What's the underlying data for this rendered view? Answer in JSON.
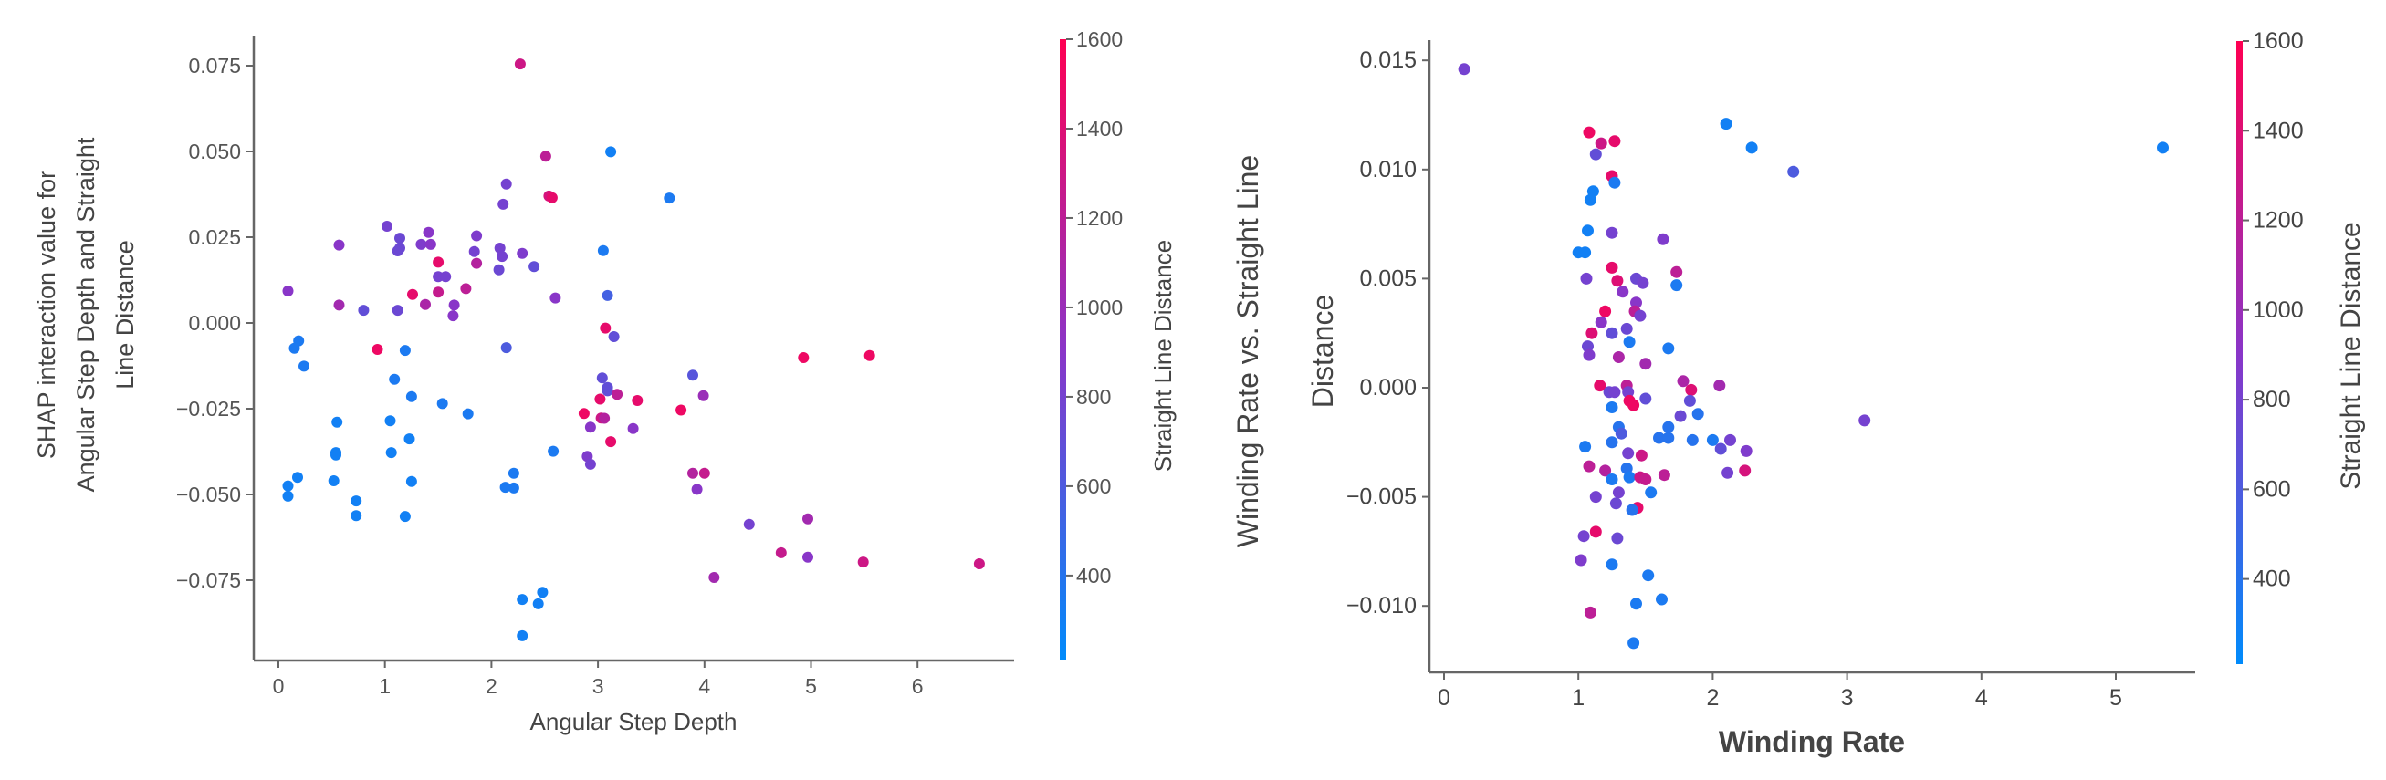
{
  "chart_data": [
    {
      "type": "scatter",
      "xlabel": "Angular Step Depth",
      "ylabel_lines": [
        "SHAP interaction value for",
        "Angular Step Depth and Straight",
        "Line Distance"
      ],
      "colorbar_label": "Straight Line Distance",
      "xlim": [
        -0.3,
        6.9
      ],
      "ylim": [
        -0.098,
        0.084
      ],
      "xticks": [
        0,
        1,
        2,
        3,
        4,
        5,
        6
      ],
      "xtick_labels": [
        "0",
        "1",
        "2",
        "3",
        "4",
        "5",
        "6"
      ],
      "yticks": [
        0.075,
        0.05,
        0.025,
        0,
        -0.025,
        -0.05,
        -0.075
      ],
      "ytick_labels": [
        "0.075",
        "0.050",
        "0.025",
        "0.000",
        "−0.025",
        "−0.050",
        "−0.075"
      ],
      "colorbar_ticks": [
        400,
        600,
        800,
        1000,
        1200,
        1400,
        1600
      ],
      "colorbar_range": [
        210,
        1600
      ],
      "points": [
        [
          2.27,
          0.0755,
          1300
        ],
        [
          3.12,
          0.0499,
          300
        ],
        [
          2.51,
          0.0486,
          1200
        ],
        [
          3.67,
          0.0364,
          350
        ],
        [
          2.54,
          0.037,
          1350
        ],
        [
          2.57,
          0.0365,
          1450
        ],
        [
          2.14,
          0.0405,
          800
        ],
        [
          2.11,
          0.0346,
          800
        ],
        [
          1.02,
          0.0282,
          800
        ],
        [
          1.14,
          0.0247,
          750
        ],
        [
          0.57,
          0.0227,
          900
        ],
        [
          1.12,
          0.021,
          750
        ],
        [
          1.14,
          0.0218,
          750
        ],
        [
          1.34,
          0.0229,
          850
        ],
        [
          1.43,
          0.0229,
          900
        ],
        [
          1.41,
          0.0264,
          900
        ],
        [
          1.86,
          0.0254,
          850
        ],
        [
          1.84,
          0.0208,
          800
        ],
        [
          2.08,
          0.0218,
          800
        ],
        [
          2.1,
          0.0194,
          800
        ],
        [
          2.29,
          0.0203,
          850
        ],
        [
          1.5,
          0.0177,
          1450
        ],
        [
          1.86,
          0.0174,
          1150
        ],
        [
          2.07,
          0.0155,
          750
        ],
        [
          2.4,
          0.0164,
          700
        ],
        [
          1.5,
          0.0135,
          800
        ],
        [
          1.57,
          0.0135,
          800
        ],
        [
          1.76,
          0.01,
          1200
        ],
        [
          1.26,
          0.0083,
          1450
        ],
        [
          1.5,
          0.009,
          1250
        ],
        [
          2.6,
          0.0073,
          900
        ],
        [
          0.09,
          0.0093,
          900
        ],
        [
          0.57,
          0.0052,
          1050
        ],
        [
          0.8,
          0.0037,
          700
        ],
        [
          1.12,
          0.0037,
          750
        ],
        [
          1.38,
          0.0054,
          1100
        ],
        [
          1.65,
          0.0052,
          900
        ],
        [
          1.64,
          0.0021,
          900
        ],
        [
          3.05,
          0.0211,
          350
        ],
        [
          3.09,
          0.008,
          550
        ],
        [
          3.07,
          -0.0015,
          1450
        ],
        [
          3.15,
          -0.004,
          700
        ],
        [
          0.19,
          -0.0052,
          350
        ],
        [
          0.15,
          -0.0074,
          350
        ],
        [
          0.24,
          -0.0126,
          350
        ],
        [
          0.93,
          -0.0077,
          1500
        ],
        [
          1.19,
          -0.008,
          350
        ],
        [
          2.14,
          -0.0072,
          600
        ],
        [
          4.93,
          -0.0101,
          1500
        ],
        [
          5.55,
          -0.0095,
          1500
        ],
        [
          1.09,
          -0.0164,
          350
        ],
        [
          1.25,
          -0.0215,
          350
        ],
        [
          1.54,
          -0.0235,
          350
        ],
        [
          1.78,
          -0.0265,
          350
        ],
        [
          3.04,
          -0.016,
          700
        ],
        [
          3.09,
          -0.0188,
          700
        ],
        [
          3.09,
          -0.0198,
          700
        ],
        [
          3.18,
          -0.0208,
          1200
        ],
        [
          3.02,
          -0.0222,
          1450
        ],
        [
          3.37,
          -0.0226,
          1450
        ],
        [
          3.89,
          -0.0152,
          650
        ],
        [
          3.99,
          -0.0212,
          1000
        ],
        [
          3.78,
          -0.0254,
          1500
        ],
        [
          2.87,
          -0.0264,
          1500
        ],
        [
          3.03,
          -0.0277,
          1300
        ],
        [
          3.06,
          -0.0278,
          1150
        ],
        [
          2.93,
          -0.0304,
          900
        ],
        [
          3.33,
          -0.0308,
          900
        ],
        [
          3.12,
          -0.0346,
          1450
        ],
        [
          2.9,
          -0.0389,
          850
        ],
        [
          2.93,
          -0.0412,
          800
        ],
        [
          0.55,
          -0.0289,
          300
        ],
        [
          1.05,
          -0.0285,
          300
        ],
        [
          0.54,
          -0.0378,
          300
        ],
        [
          0.54,
          -0.0385,
          300
        ],
        [
          1.06,
          -0.0378,
          300
        ],
        [
          1.23,
          -0.0338,
          300
        ],
        [
          2.58,
          -0.0374,
          350
        ],
        [
          0.18,
          -0.045,
          300
        ],
        [
          0.09,
          -0.0475,
          300
        ],
        [
          0.09,
          -0.0505,
          300
        ],
        [
          0.52,
          -0.046,
          300
        ],
        [
          1.25,
          -0.0462,
          300
        ],
        [
          2.21,
          -0.0438,
          350
        ],
        [
          2.13,
          -0.0479,
          350
        ],
        [
          2.21,
          -0.0481,
          350
        ],
        [
          0.73,
          -0.0519,
          300
        ],
        [
          0.73,
          -0.0562,
          300
        ],
        [
          1.19,
          -0.0564,
          300
        ],
        [
          3.89,
          -0.0438,
          1150
        ],
        [
          4.0,
          -0.0438,
          1250
        ],
        [
          3.93,
          -0.0485,
          900
        ],
        [
          4.42,
          -0.0587,
          800
        ],
        [
          4.97,
          -0.0571,
          1050
        ],
        [
          4.72,
          -0.067,
          1250
        ],
        [
          4.97,
          -0.0683,
          900
        ],
        [
          5.49,
          -0.0697,
          1300
        ],
        [
          6.58,
          -0.0702,
          1300
        ],
        [
          4.09,
          -0.0742,
          1050
        ],
        [
          2.29,
          -0.0806,
          300
        ],
        [
          2.48,
          -0.0785,
          300
        ],
        [
          2.44,
          -0.0819,
          300
        ],
        [
          2.29,
          -0.0912,
          300
        ]
      ]
    },
    {
      "type": "scatter",
      "xlabel": "Winding Rate",
      "ylabel_lines": [
        "Winding Rate vs. Straight Line",
        "Distance"
      ],
      "colorbar_label": "Straight Line Distance",
      "xlim": [
        -0.1,
        5.7
      ],
      "ylim": [
        -0.0131,
        0.0159
      ],
      "xticks": [
        0,
        1,
        2,
        3,
        4,
        5
      ],
      "xtick_labels": [
        "0",
        "1",
        "2",
        "3",
        "4",
        "5"
      ],
      "yticks": [
        0.015,
        0.01,
        0.005,
        0,
        -0.005,
        -0.01
      ],
      "ytick_labels": [
        "0.015",
        "0.010",
        "0.005",
        "0.000",
        "−0.005",
        "−0.010"
      ],
      "colorbar_ticks": [
        400,
        600,
        800,
        1000,
        1200,
        1400,
        1600
      ],
      "colorbar_range": [
        210,
        1600
      ],
      "points": [
        [
          0.15,
          0.0146,
          800
        ],
        [
          2.1,
          0.0121,
          300
        ],
        [
          2.29,
          0.011,
          300
        ],
        [
          2.6,
          0.0099,
          600
        ],
        [
          5.35,
          0.011,
          300
        ],
        [
          1.08,
          0.0117,
          1500
        ],
        [
          1.17,
          0.0112,
          1300
        ],
        [
          1.27,
          0.0113,
          1450
        ],
        [
          1.13,
          0.0107,
          700
        ],
        [
          1.25,
          0.0097,
          1450
        ],
        [
          1.27,
          0.0094,
          350
        ],
        [
          1.11,
          0.009,
          300
        ],
        [
          1.09,
          0.0086,
          300
        ],
        [
          1.07,
          0.0072,
          300
        ],
        [
          1.25,
          0.0071,
          800
        ],
        [
          1.63,
          0.0068,
          850
        ],
        [
          1.0,
          0.0062,
          300
        ],
        [
          1.05,
          0.0062,
          300
        ],
        [
          1.25,
          0.0055,
          1450
        ],
        [
          1.73,
          0.0053,
          1200
        ],
        [
          1.06,
          0.005,
          800
        ],
        [
          1.29,
          0.0049,
          1400
        ],
        [
          1.43,
          0.005,
          750
        ],
        [
          1.48,
          0.0048,
          800
        ],
        [
          1.73,
          0.0047,
          350
        ],
        [
          1.33,
          0.0044,
          900
        ],
        [
          1.43,
          0.0039,
          900
        ],
        [
          1.42,
          0.0035,
          1200
        ],
        [
          1.46,
          0.0033,
          800
        ],
        [
          1.2,
          0.0035,
          1500
        ],
        [
          1.17,
          0.003,
          900
        ],
        [
          1.36,
          0.0027,
          750
        ],
        [
          1.1,
          0.0025,
          1400
        ],
        [
          1.25,
          0.0025,
          700
        ],
        [
          1.38,
          0.0021,
          350
        ],
        [
          1.07,
          0.0019,
          750
        ],
        [
          1.08,
          0.0015,
          850
        ],
        [
          1.67,
          0.0018,
          350
        ],
        [
          1.3,
          0.0014,
          1100
        ],
        [
          1.5,
          0.0011,
          1050
        ],
        [
          1.78,
          0.0003,
          1100
        ],
        [
          2.05,
          0.0001,
          1050
        ],
        [
          1.16,
          0.0001,
          1450
        ],
        [
          1.36,
          0.0001,
          1200
        ],
        [
          1.37,
          -0.0002,
          800
        ],
        [
          1.23,
          -0.0002,
          750
        ],
        [
          1.27,
          -0.0002,
          800
        ],
        [
          1.84,
          -0.0001,
          1400
        ],
        [
          1.5,
          -0.0005,
          700
        ],
        [
          1.83,
          -0.0006,
          700
        ],
        [
          1.38,
          -0.0006,
          1500
        ],
        [
          1.41,
          -0.0008,
          1500
        ],
        [
          1.25,
          -0.0009,
          350
        ],
        [
          3.13,
          -0.0015,
          800
        ],
        [
          1.76,
          -0.0013,
          750
        ],
        [
          1.89,
          -0.0012,
          400
        ],
        [
          1.3,
          -0.0018,
          400
        ],
        [
          1.32,
          -0.0021,
          600
        ],
        [
          1.67,
          -0.0018,
          400
        ],
        [
          1.6,
          -0.0023,
          400
        ],
        [
          1.67,
          -0.0023,
          400
        ],
        [
          1.85,
          -0.0024,
          400
        ],
        [
          2.0,
          -0.0024,
          350
        ],
        [
          2.06,
          -0.0028,
          700
        ],
        [
          2.13,
          -0.0024,
          800
        ],
        [
          2.25,
          -0.0029,
          850
        ],
        [
          1.05,
          -0.0027,
          350
        ],
        [
          1.25,
          -0.0025,
          400
        ],
        [
          1.37,
          -0.003,
          800
        ],
        [
          1.47,
          -0.0031,
          1300
        ],
        [
          1.08,
          -0.0036,
          1200
        ],
        [
          1.2,
          -0.0038,
          1150
        ],
        [
          1.36,
          -0.0037,
          400
        ],
        [
          1.25,
          -0.0042,
          350
        ],
        [
          1.38,
          -0.0041,
          350
        ],
        [
          1.46,
          -0.0041,
          1300
        ],
        [
          1.5,
          -0.0042,
          1250
        ],
        [
          1.64,
          -0.004,
          1200
        ],
        [
          2.11,
          -0.0039,
          800
        ],
        [
          2.24,
          -0.0038,
          1350
        ],
        [
          1.54,
          -0.0048,
          350
        ],
        [
          1.13,
          -0.005,
          800
        ],
        [
          1.3,
          -0.0048,
          800
        ],
        [
          1.28,
          -0.0053,
          750
        ],
        [
          1.44,
          -0.0055,
          1450
        ],
        [
          1.4,
          -0.0056,
          400
        ],
        [
          1.04,
          -0.0068,
          800
        ],
        [
          1.13,
          -0.0066,
          1450
        ],
        [
          1.29,
          -0.0069,
          750
        ],
        [
          1.02,
          -0.0079,
          850
        ],
        [
          1.25,
          -0.0081,
          350
        ],
        [
          1.52,
          -0.0086,
          350
        ],
        [
          1.09,
          -0.0103,
          1200
        ],
        [
          1.43,
          -0.0099,
          350
        ],
        [
          1.62,
          -0.0097,
          350
        ],
        [
          1.41,
          -0.0117,
          350
        ]
      ]
    }
  ],
  "colors": {
    "low": "#008bfb",
    "mid": "#8a35c8",
    "high": "#ff0052",
    "axis": "#666666"
  }
}
